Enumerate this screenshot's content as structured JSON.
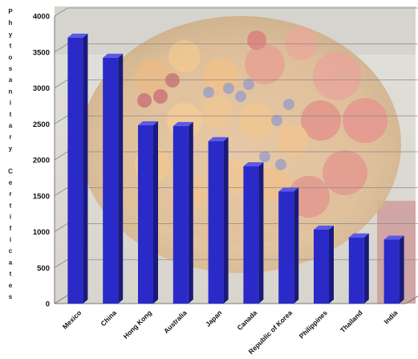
{
  "chart_data": {
    "type": "bar",
    "title": "",
    "xlabel": "",
    "ylabel": "Phytosanitary Certificates",
    "ylabel_lines": [
      "Phytosanitary",
      "Certificates"
    ],
    "categories": [
      "Mexico",
      "China",
      "Hong Kong",
      "Australia",
      "Japan",
      "Canada",
      "Republic of Korea",
      "Philippines",
      "Thailand",
      "India"
    ],
    "values": [
      3700,
      3420,
      2480,
      2470,
      2260,
      1910,
      1560,
      1030,
      920,
      890
    ],
    "ylim": [
      0,
      4000
    ],
    "yticks": [
      0,
      500,
      1000,
      1500,
      2000,
      2500,
      3000,
      3500,
      4000
    ],
    "grid": true,
    "legend": "none",
    "bar_style": "3d",
    "background": "photo of a basket of fruit",
    "colors": {
      "bar_front": "#2a2ac8",
      "bar_side": "#1a1a7c",
      "bar_top": "#5a5ae6",
      "grid": "#8a8a8a"
    }
  }
}
